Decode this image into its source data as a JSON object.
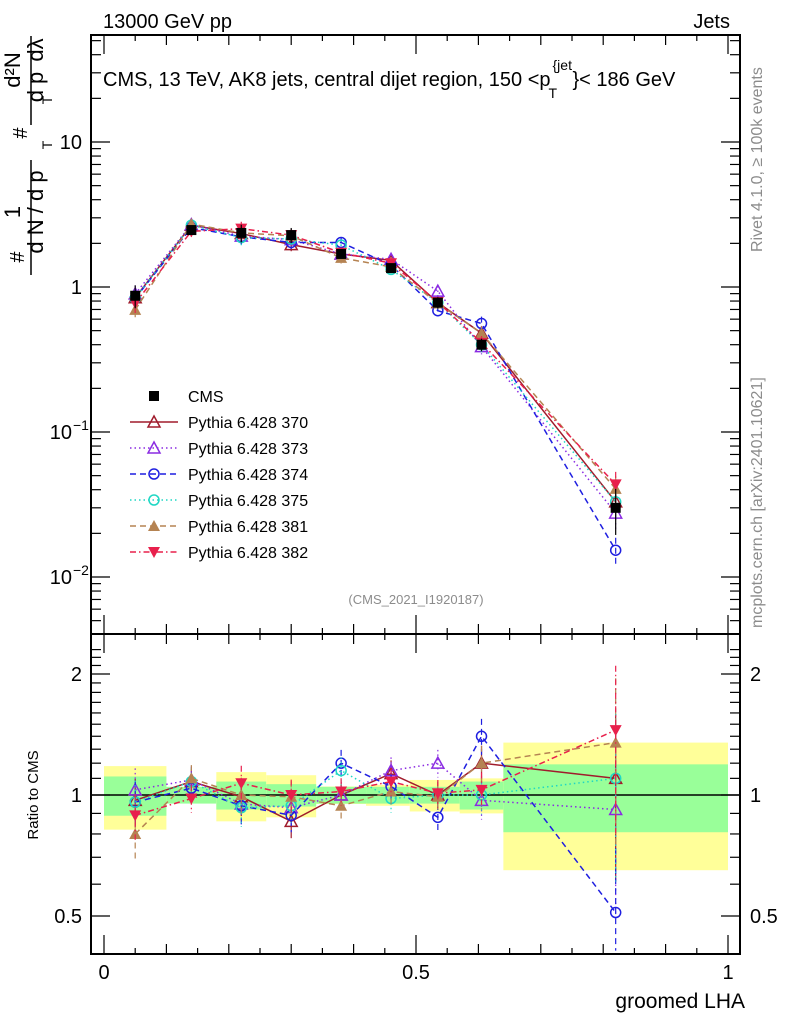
{
  "header": {
    "left": "13000 GeV pp",
    "right": "Jets"
  },
  "side_labels": {
    "rivet": "Rivet 4.1.0, ≥ 100k events",
    "mcplots": "mcplots.cern.ch [arXiv:2401.10621]"
  },
  "chart_data": [
    {
      "type": "line",
      "title": "CMS, 13 TeV, AK8 jets, central dijet region, 150 <p_T^{jet}< 186 GeV",
      "title_parts": {
        "prefix": "CMS, 13 TeV, AK8 jets, central dijet region, 150 <p",
        "sup": "{jet",
        "sub": "T",
        "suffix": "}< 186 GeV"
      },
      "ylabel": "1/dN/dp_T  d²N/dp_T dλ",
      "ylabel_parts": [
        "#",
        "1",
        "d N / d p",
        "T",
        "#",
        "d²N",
        "d p",
        "T",
        "dλ"
      ],
      "xlabel": "groomed LHA",
      "yscale": "log",
      "ylim": [
        0.004,
        60
      ],
      "xlim": [
        -0.02,
        1.02
      ],
      "yticks": [
        {
          "value": 10,
          "label": "10"
        },
        {
          "value": 1,
          "label": "1"
        },
        {
          "value": 0.1,
          "label": "10",
          "exp": "−1"
        },
        {
          "value": 0.01,
          "label": "10",
          "exp": "−2"
        }
      ],
      "analysis_label": "(CMS_2021_I1920187)",
      "legend_position": "middle-left",
      "bins": [
        [
          0.0,
          0.1
        ],
        [
          0.1,
          0.18
        ],
        [
          0.18,
          0.26
        ],
        [
          0.26,
          0.34
        ],
        [
          0.34,
          0.42
        ],
        [
          0.42,
          0.49
        ],
        [
          0.49,
          0.57
        ],
        [
          0.57,
          0.64
        ],
        [
          0.64,
          1.0
        ]
      ],
      "x": [
        0.05,
        0.14,
        0.22,
        0.3,
        0.38,
        0.46,
        0.535,
        0.605,
        0.82
      ],
      "data": {
        "name": "CMS",
        "values": [
          0.87,
          2.47,
          2.36,
          2.28,
          1.69,
          1.35,
          0.78,
          0.4,
          0.03
        ],
        "stat_rel": [
          0.07,
          0.03,
          0.05,
          0.04,
          0.03,
          0.03,
          0.03,
          0.05,
          0.12
        ],
        "total_rel": [
          0.18,
          0.04,
          0.14,
          0.12,
          0.05,
          0.06,
          0.09,
          0.1,
          0.35
        ]
      },
      "series": [
        {
          "name": "Pythia 6.428 370",
          "color": "#a01c2c",
          "marker": "triangle-open",
          "dash": "solid",
          "ratio": [
            0.97,
            1.08,
            0.99,
            0.86,
            1.0,
            1.13,
            1.0,
            1.2,
            1.1
          ]
        },
        {
          "name": "Pythia 6.428 373",
          "color": "#8a2be2",
          "marker": "triangle-open",
          "dash": "dotted",
          "ratio": [
            1.03,
            1.09,
            0.95,
            0.93,
            1.0,
            1.15,
            1.2,
            0.97,
            0.92
          ]
        },
        {
          "name": "Pythia 6.428 374",
          "color": "#1f1fe0",
          "marker": "circle-open",
          "dash": "dashed",
          "ratio": [
            0.96,
            1.04,
            0.94,
            0.89,
            1.2,
            1.05,
            0.88,
            1.4,
            0.51
          ]
        },
        {
          "name": "Pythia 6.428 375",
          "color": "#1fd7c4",
          "marker": "circle-open",
          "dash": "dotted",
          "ratio": [
            0.96,
            1.08,
            0.93,
            0.94,
            1.15,
            0.98,
            1.0,
            1.0,
            1.1
          ]
        },
        {
          "name": "Pythia 6.428 381",
          "color": "#b58352",
          "marker": "triangle-filled",
          "dash": "dashed",
          "ratio": [
            0.8,
            1.1,
            1.0,
            0.99,
            0.94,
            1.02,
            0.99,
            1.2,
            1.35
          ]
        },
        {
          "name": "Pythia 6.428 382",
          "color": "#e8204c",
          "marker": "triangle-down-filled",
          "dash": "dashdot",
          "ratio": [
            0.89,
            0.98,
            1.07,
            1.0,
            1.02,
            1.08,
            1.01,
            1.03,
            1.45
          ]
        }
      ]
    },
    {
      "type": "line",
      "title": "",
      "ylabel": "Ratio to CMS",
      "xlabel": "groomed LHA",
      "yscale": "log",
      "ylim": [
        0.4,
        2.35
      ],
      "yticks": [
        {
          "value": 2,
          "label": "2"
        },
        {
          "value": 1,
          "label": "1"
        },
        {
          "value": 0.5,
          "label": "0.5"
        }
      ],
      "xticks": [
        {
          "value": 0,
          "label": "0"
        },
        {
          "value": 0.5,
          "label": "0.5"
        },
        {
          "value": 1,
          "label": "1"
        }
      ],
      "band_colors": {
        "stat": "#99ff99",
        "total": "#ffff99"
      },
      "reference_line": 1
    }
  ]
}
